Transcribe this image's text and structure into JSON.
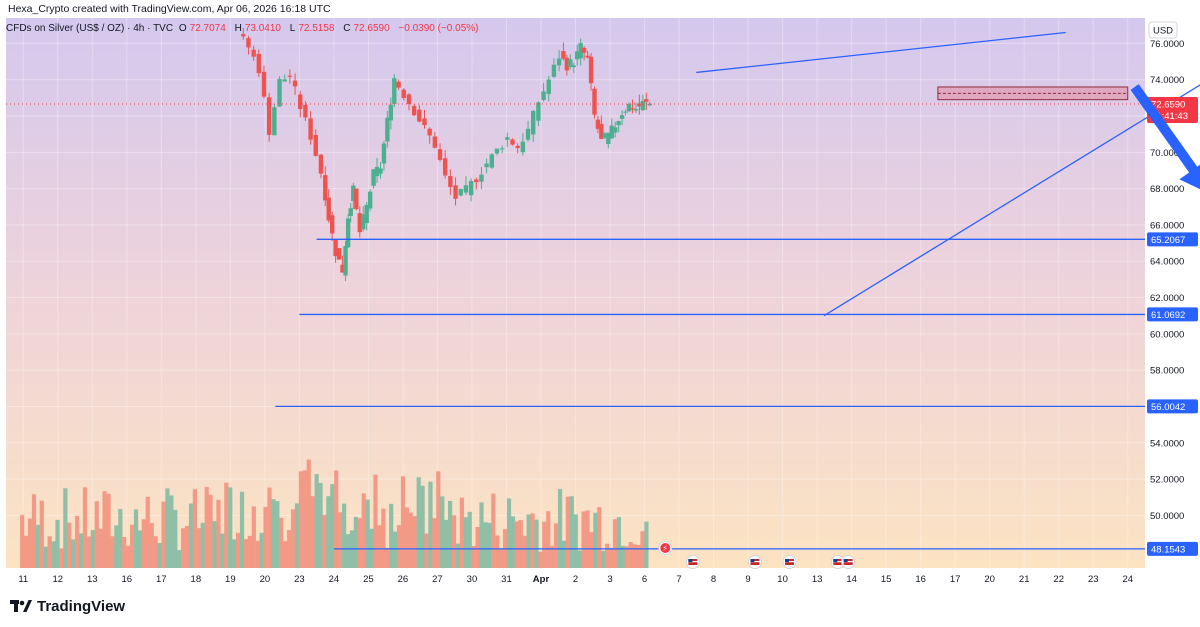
{
  "header": {
    "author_line": "Hexa_Crypto created with TradingView.com, Apr 06, 2026 16:18 UTC"
  },
  "legend": {
    "symbol": "CFDs on Silver (US$ / OZ) · 4h · TVC",
    "o_label": "O",
    "o_value": "72.7074",
    "h_label": "H",
    "h_value": "73.0410",
    "l_label": "L",
    "l_value": "72.5158",
    "c_label": "C",
    "c_value": "72.6590",
    "change": "−0.0390 (−0.05%)"
  },
  "currency_button": "USD",
  "footer": {
    "brand": "TradingView"
  },
  "colors": {
    "up": "#4caf8f",
    "down": "#ef5350",
    "up_volume": "#8fbfa6",
    "down_volume": "#f39a86",
    "drawing_blue": "#2962ff",
    "price_tag_red": "#f23645",
    "zone_fill": "#e57c8e"
  },
  "chart_data": {
    "type": "candlestick",
    "symbol": "CFDs on Silver (US$ / OZ)",
    "timeframe": "4h",
    "source": "TVC",
    "y_ticks": [
      76,
      74,
      72,
      70,
      68,
      66,
      64,
      62,
      60,
      58,
      56,
      54,
      52,
      50
    ],
    "y_tick_labels": [
      "76.0000",
      "74.0000",
      "72.0000",
      "70.0000",
      "68.0000",
      "66.0000",
      "64.0000",
      "62.0000",
      "60.0000",
      "58.0000",
      "56.0000",
      "54.0000",
      "52.0000",
      "50.0000"
    ],
    "ylim": [
      47.1,
      77.4
    ],
    "x_tick_labels": [
      "11",
      "12",
      "13",
      "16",
      "17",
      "18",
      "19",
      "20",
      "23",
      "24",
      "25",
      "26",
      "27",
      "30",
      "31",
      "Apr",
      "2",
      "3",
      "6",
      "7",
      "8",
      "9",
      "10",
      "13",
      "14",
      "15",
      "16",
      "17",
      "20",
      "21",
      "22",
      "23",
      "24"
    ],
    "grid": true,
    "last_price": "72.6590",
    "countdown": "01:41:43",
    "horizontal_levels": [
      65.2067,
      61.0692,
      56.0042,
      48.1543
    ],
    "horizontal_level_labels": [
      "65.2067",
      "61.0692",
      "56.0042",
      "48.1543"
    ],
    "rising_wedge": {
      "upper_line": [
        [
          19.5,
          74.4
        ],
        [
          30.2,
          76.6
        ]
      ],
      "lower_line": [
        [
          23.2,
          61.0
        ],
        [
          35.2,
          75.0
        ]
      ]
    },
    "supply_zone": {
      "from": 72.9,
      "to": 73.6,
      "x_start": 26.5,
      "x_end": 32.0
    },
    "projection_arrow": {
      "from": [
        32.2,
        73.6
      ],
      "to": [
        34.4,
        67.7
      ],
      "direction": "down"
    },
    "candles": [
      [
        72.7,
        73.05,
        72.52,
        72.66
      ]
    ],
    "volume": [],
    "events": [
      "flash-icon",
      "us-flag-icon",
      "us-flag-icon",
      "us-flag-icon",
      "us-flag-icon",
      "us-flag-icon"
    ]
  }
}
